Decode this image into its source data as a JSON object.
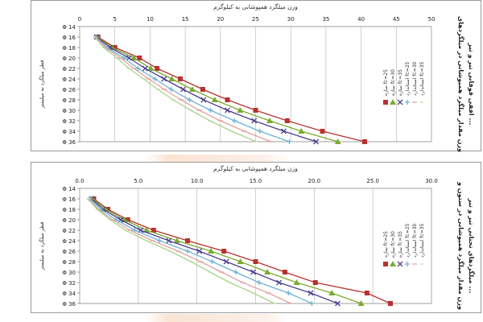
{
  "chart_data": [
    {
      "type": "line",
      "title": "وزن میلگرد همپوشانی به کیلوگرم",
      "xlabel": "وزن میلگرد همپوشانی به کیلوگرم",
      "ylabel": "قطر میلگرد به میلیمتر",
      "side_title_line1": "وزن مقدار میلگرد همپوشانی در میلگردهای",
      "side_title_line2": "افقی فوقانی تیر و تیر ...",
      "xlim": [
        0,
        50
      ],
      "x_ticks": [
        "0",
        "5",
        "10",
        "15",
        "20",
        "25",
        "30",
        "35",
        "40",
        "45",
        "50"
      ],
      "categories": [
        "Φ 14",
        "Φ 16",
        "Φ 18",
        "Φ 20",
        "Φ 22",
        "Φ 24",
        "Φ 26",
        "Φ 28",
        "Φ 30",
        "Φ 32",
        "Φ 34",
        "Φ 36"
      ],
      "legend_position": "right",
      "colors": [
        "#b8312f",
        "#7aab2e",
        "#4b3f8f",
        "#6fb2d6",
        "#e3a0a0",
        "#a8d48a"
      ],
      "series": [
        {
          "name": "سازه fc=25",
          "values": [
            null,
            2.6,
            5.0,
            8.5,
            11.0,
            14.3,
            17.5,
            21.0,
            25.0,
            29.5,
            34.5,
            40.5
          ]
        },
        {
          "name": "سازه fc=30",
          "values": [
            null,
            2.5,
            4.6,
            7.7,
            10.1,
            13.1,
            16.0,
            19.2,
            22.8,
            27.0,
            31.5,
            36.7
          ]
        },
        {
          "name": "سازه fc=35",
          "values": [
            null,
            2.4,
            4.3,
            7.0,
            9.3,
            12.0,
            14.7,
            17.6,
            21.0,
            24.8,
            29.0,
            33.6
          ]
        },
        {
          "name": "استاندارد fc=25",
          "values": [
            null,
            2.3,
            3.9,
            6.3,
            8.3,
            10.7,
            13.0,
            15.6,
            18.6,
            22.0,
            25.6,
            29.8
          ]
        },
        {
          "name": "استاندارد fc=30",
          "values": [
            null,
            2.2,
            3.7,
            5.8,
            7.7,
            9.8,
            12.0,
            14.4,
            17.0,
            20.0,
            23.4,
            27.2
          ]
        },
        {
          "name": "استاندارد fc=35",
          "values": [
            null,
            2.1,
            3.4,
            5.3,
            7.0,
            9.1,
            11.1,
            13.3,
            15.8,
            18.5,
            21.6,
            25.1
          ]
        }
      ]
    },
    {
      "type": "line",
      "title": "وزن میلگرد همپوشانی به کیلوگرم",
      "xlabel": "وزن میلگرد همپوشانی به کیلوگرم",
      "ylabel": "قطر میلگرد به میلیمتر",
      "side_title_line1": "وزن مقدار میلگرد همپوشانی در ستون و",
      "side_title_line2": "میلگردهای تحتانی تیر و تیر ...",
      "xlim": [
        0,
        30
      ],
      "x_ticks": [
        "0.0",
        "5.0",
        "10.0",
        "15.0",
        "20.0",
        "25.0",
        "30.0"
      ],
      "categories": [
        "Φ 14",
        "Φ 16",
        "Φ 18",
        "Φ 20",
        "Φ 22",
        "Φ 24",
        "Φ 26",
        "Φ 28",
        "Φ 30",
        "Φ 32",
        "Φ 34",
        "Φ 36"
      ],
      "legend_position": "right",
      "colors": [
        "#b8312f",
        "#7aab2e",
        "#4b3f8f",
        "#6fb2d6",
        "#e3a0a0",
        "#a8d48a"
      ],
      "series": [
        {
          "name": "سازه fc=25",
          "values": [
            null,
            1.2,
            2.4,
            4.1,
            6.3,
            9.2,
            12.3,
            15.0,
            17.5,
            20.1,
            24.5,
            26.5
          ]
        },
        {
          "name": "سازه fc=30",
          "values": [
            null,
            1.1,
            2.2,
            3.8,
            5.7,
            8.3,
            11.2,
            13.7,
            16.0,
            18.5,
            21.5,
            24.0
          ]
        },
        {
          "name": "سازه fc=35",
          "values": [
            null,
            1.0,
            2.0,
            3.5,
            5.2,
            7.6,
            10.2,
            12.5,
            14.8,
            17.0,
            19.7,
            22.0
          ]
        },
        {
          "name": "استاندارد fc=25",
          "values": [
            null,
            0.9,
            1.8,
            3.1,
            4.7,
            6.8,
            9.2,
            11.3,
            13.3,
            15.3,
            17.8,
            19.8
          ]
        },
        {
          "name": "استاندارد fc=30",
          "values": [
            null,
            0.8,
            1.6,
            2.8,
            4.3,
            6.2,
            8.4,
            10.3,
            12.1,
            13.9,
            16.1,
            18.0
          ]
        },
        {
          "name": "استاندارد fc=35",
          "values": [
            null,
            0.7,
            1.5,
            2.6,
            3.9,
            5.7,
            7.7,
            9.5,
            11.1,
            12.8,
            14.8,
            16.6
          ]
        }
      ]
    }
  ]
}
